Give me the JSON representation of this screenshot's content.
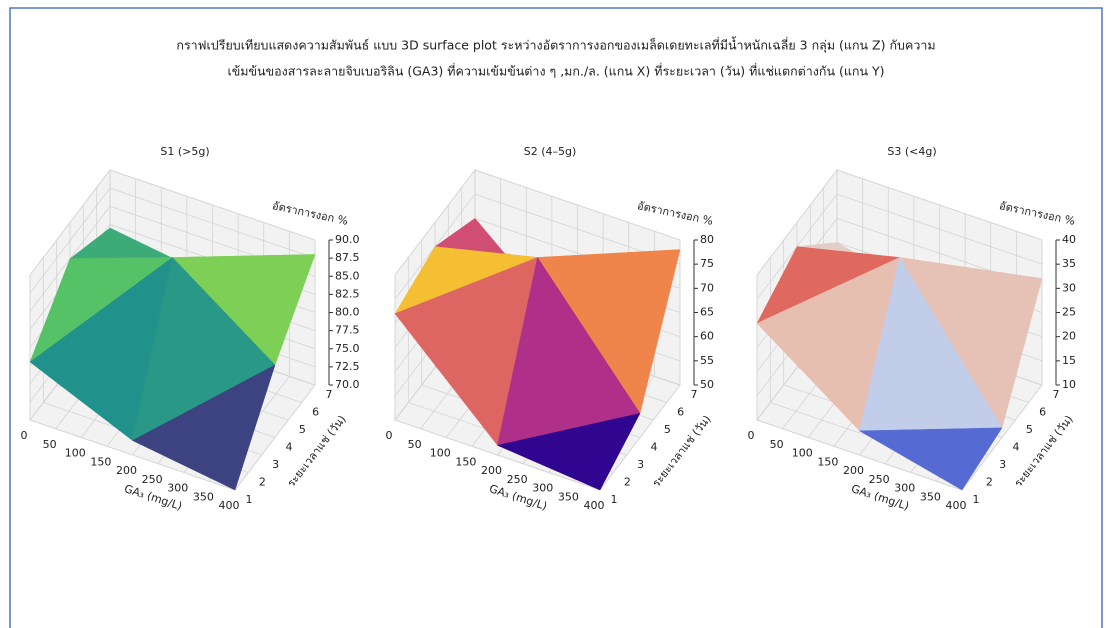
{
  "title": [
    "กราฟเปรียบเทียบแสดงความสัมพันธ์ แบบ 3D surface plot ระหว่างอัตราการงอกของเมล็ดเดยทะเลที่มีน้ำหนักเฉลี่ย 3 กลุ่ม (แกน Z) กับความ",
    "เข้มข้นของสารละลายจิบเบอริลิน (GA3) ที่ความเข้มข้นต่าง ๆ ,มก./ล. (แกน X) ที่ระยะเวลา (วัน) ที่แช่แตกต่างกัน (แกน Y)"
  ],
  "chart_data": [
    {
      "type": "surface3d",
      "title": "S1 (>5g)",
      "x_label": "GA₃ (mg/L)",
      "y_label": "ระยะเวลาแช่ (วัน)",
      "z_label": "อัตราการงอก %",
      "x": [
        0,
        200,
        400
      ],
      "y": [
        1,
        4,
        7
      ],
      "z": [
        [
          78,
          72,
          70
        ],
        [
          85,
          90,
          80
        ],
        [
          82,
          80,
          88
        ]
      ],
      "colormap": [
        "#440154",
        "#3b528b",
        "#21918c",
        "#5ec962",
        "#fde725"
      ],
      "xlim": [
        0,
        400
      ],
      "ylim": [
        1,
        7
      ],
      "zlim": [
        70,
        90
      ],
      "xticks": [
        0,
        50,
        100,
        150,
        200,
        250,
        300,
        350,
        400
      ],
      "yticks": [
        1,
        2,
        3,
        4,
        5,
        6,
        7
      ],
      "zticks": [
        {
          "value": 70,
          "label": "70.0"
        },
        72.5,
        {
          "value": 75,
          "label": "75.0"
        },
        77.5,
        {
          "value": 80,
          "label": "80.0"
        },
        82.5,
        {
          "value": 85,
          "label": "85.0"
        },
        87.5,
        {
          "value": 90,
          "label": "90.0"
        }
      ]
    },
    {
      "type": "surface3d",
      "title": "S2 (4–5g)",
      "x_label": "GA₃ (mg/L)",
      "y_label": "ระยะเวลาแช่ (วัน)",
      "z_label": "อัตราการงอก %",
      "x": [
        0,
        200,
        400
      ],
      "y": [
        1,
        4,
        7
      ],
      "z": [
        [
          72,
          52,
          50
        ],
        [
          75,
          80,
          55
        ],
        [
          70,
          52,
          78
        ]
      ],
      "colormap": [
        "#0d0887",
        "#7e03a8",
        "#cc4778",
        "#f89540",
        "#f0f921"
      ],
      "xlim": [
        0,
        400
      ],
      "ylim": [
        1,
        7
      ],
      "zlim": [
        50,
        80
      ],
      "xticks": [
        0,
        50,
        100,
        150,
        200,
        250,
        300,
        350,
        400
      ],
      "yticks": [
        1,
        2,
        3,
        4,
        5,
        6,
        7
      ],
      "zticks": [
        50,
        55,
        60,
        65,
        70,
        75,
        80
      ]
    },
    {
      "type": "surface3d",
      "title": "S3 (<4g)",
      "x_label": "GA₃ (mg/L)",
      "y_label": "ระยะเวลาแช่ (วัน)",
      "z_label": "อัตราการงอก %",
      "x": [
        0,
        200,
        400
      ],
      "y": [
        1,
        4,
        7
      ],
      "z": [
        [
          30,
          15,
          10
        ],
        [
          35,
          40,
          12
        ],
        [
          25,
          20,
          32
        ]
      ],
      "colormap": [
        "#3b4cc0",
        "#8db0fe",
        "#dddddd",
        "#f49a7b",
        "#b40426"
      ],
      "xlim": [
        0,
        400
      ],
      "ylim": [
        1,
        7
      ],
      "zlim": [
        10,
        40
      ],
      "xticks": [
        0,
        50,
        100,
        150,
        200,
        250,
        300,
        350,
        400
      ],
      "yticks": [
        1,
        2,
        3,
        4,
        5,
        6,
        7
      ],
      "zticks": [
        10,
        15,
        20,
        25,
        30,
        35,
        40
      ]
    }
  ]
}
